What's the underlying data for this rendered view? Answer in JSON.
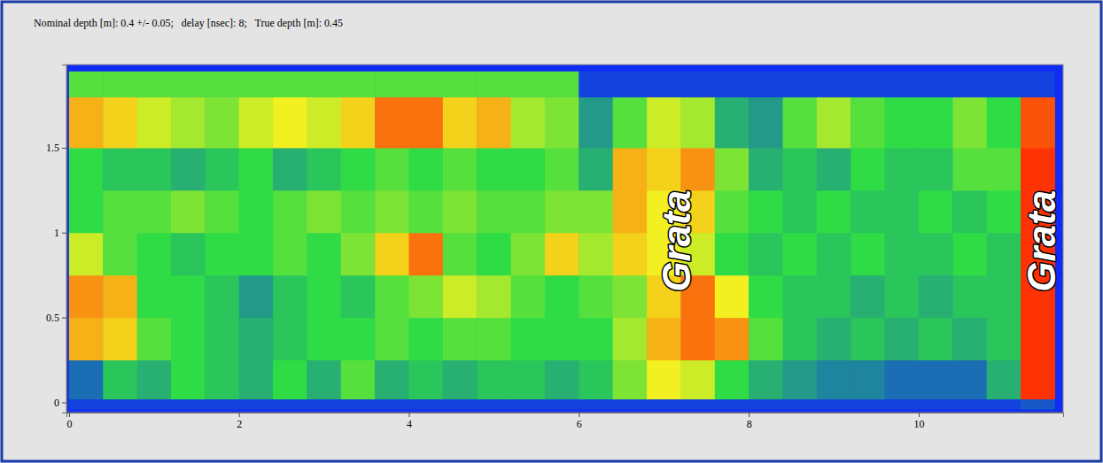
{
  "chart_data": {
    "type": "heatmap",
    "title": "Nominal depth [m]: 0.4 +/- 0.05;   delay [nsec]: 8;   True depth [m]: 0.45",
    "xlim": [
      -0.03,
      11.7
    ],
    "ylim": [
      -0.06,
      1.99
    ],
    "xticks": [
      0,
      2,
      4,
      6,
      8,
      10
    ],
    "yticks": [
      0,
      0.5,
      1,
      1.5
    ],
    "zlim": [
      0,
      1
    ],
    "x_edges": [
      0,
      0.4,
      0.8,
      1.2,
      1.6,
      2,
      2.4,
      2.8,
      3.2,
      3.6,
      4,
      4.4,
      4.8,
      5.2,
      5.6,
      6,
      6.4,
      6.8,
      7.2,
      7.6,
      8,
      8.4,
      8.8,
      9.2,
      9.6,
      10,
      10.4,
      10.8,
      11.2,
      11.6
    ],
    "y_edges": [
      -0.04,
      0.02,
      0.25,
      0.5,
      0.75,
      1,
      1.25,
      1.5,
      1.8,
      1.95
    ],
    "cells": [
      [
        0.05,
        0.05,
        0.05,
        0.05,
        0.05,
        0.05,
        0.05,
        0.05,
        0.05,
        0.05,
        0.05,
        0.05,
        0.05,
        0.05,
        0.05,
        0.05,
        0.05,
        0.05,
        0.05,
        0.05,
        0.05,
        0.05,
        0.05,
        0.05,
        0.05,
        0.05,
        0.05,
        0.05,
        0.1
      ],
      [
        0.15,
        0.35,
        0.3,
        0.4,
        0.35,
        0.3,
        0.4,
        0.3,
        0.45,
        0.3,
        0.35,
        0.3,
        0.35,
        0.35,
        0.3,
        0.35,
        0.5,
        0.65,
        0.6,
        0.4,
        0.3,
        0.25,
        0.2,
        0.2,
        0.15,
        0.15,
        0.15,
        0.3,
        0.95
      ],
      [
        0.75,
        0.7,
        0.45,
        0.4,
        0.35,
        0.3,
        0.35,
        0.4,
        0.4,
        0.45,
        0.4,
        0.45,
        0.45,
        0.4,
        0.4,
        0.4,
        0.55,
        0.75,
        0.85,
        0.8,
        0.45,
        0.35,
        0.3,
        0.35,
        0.3,
        0.35,
        0.3,
        0.35,
        0.95
      ],
      [
        0.8,
        0.75,
        0.4,
        0.4,
        0.35,
        0.25,
        0.35,
        0.4,
        0.35,
        0.45,
        0.5,
        0.6,
        0.55,
        0.45,
        0.4,
        0.45,
        0.5,
        0.7,
        0.85,
        0.65,
        0.4,
        0.35,
        0.35,
        0.3,
        0.35,
        0.3,
        0.35,
        0.35,
        0.95
      ],
      [
        0.6,
        0.45,
        0.4,
        0.35,
        0.4,
        0.4,
        0.45,
        0.4,
        0.5,
        0.7,
        0.85,
        0.45,
        0.4,
        0.5,
        0.7,
        0.55,
        0.7,
        0.65,
        0.6,
        0.4,
        0.35,
        0.4,
        0.35,
        0.4,
        0.35,
        0.35,
        0.4,
        0.35,
        0.95
      ],
      [
        0.4,
        0.45,
        0.45,
        0.5,
        0.45,
        0.4,
        0.45,
        0.5,
        0.45,
        0.5,
        0.45,
        0.5,
        0.45,
        0.45,
        0.5,
        0.5,
        0.75,
        0.65,
        0.7,
        0.45,
        0.4,
        0.35,
        0.4,
        0.35,
        0.35,
        0.4,
        0.35,
        0.4,
        0.95
      ],
      [
        0.4,
        0.35,
        0.35,
        0.3,
        0.35,
        0.4,
        0.3,
        0.35,
        0.4,
        0.45,
        0.4,
        0.45,
        0.4,
        0.4,
        0.45,
        0.3,
        0.75,
        0.7,
        0.8,
        0.5,
        0.3,
        0.35,
        0.3,
        0.4,
        0.35,
        0.35,
        0.45,
        0.45,
        0.95
      ],
      [
        0.75,
        0.7,
        0.6,
        0.55,
        0.5,
        0.6,
        0.65,
        0.6,
        0.7,
        0.85,
        0.85,
        0.7,
        0.75,
        0.55,
        0.5,
        0.25,
        0.45,
        0.6,
        0.55,
        0.3,
        0.25,
        0.45,
        0.55,
        0.45,
        0.4,
        0.4,
        0.5,
        0.4,
        0.9
      ],
      [
        0.45,
        0.45,
        0.45,
        0.45,
        0.45,
        0.45,
        0.45,
        0.45,
        0.45,
        0.45,
        0.45,
        0.45,
        0.45,
        0.45,
        0.45,
        0.05,
        0.05,
        0.05,
        0.05,
        0.05,
        0.05,
        0.05,
        0.05,
        0.05,
        0.05,
        0.05,
        0.05,
        0.05,
        0.05
      ]
    ],
    "annotations": [
      {
        "text": "Grata",
        "x": 7.15,
        "y": 0.95
      },
      {
        "text": "Grata",
        "x": 11.44,
        "y": 0.95
      }
    ]
  }
}
